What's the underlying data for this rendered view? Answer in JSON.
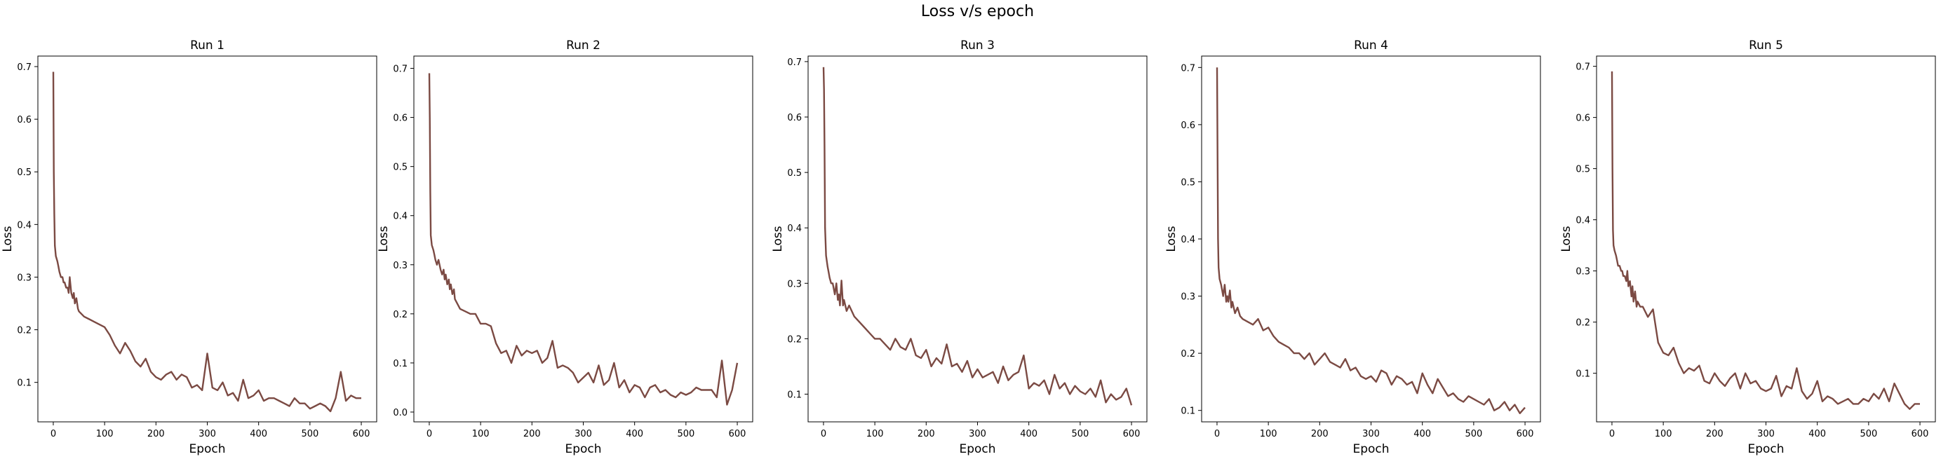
{
  "figure": {
    "title": "Loss v/s epoch",
    "line_color": "#7b4a43"
  },
  "chart_data": [
    {
      "type": "line",
      "title": "Run 1",
      "xlabel": "Epoch",
      "ylabel": "Loss",
      "xlim": [
        -30,
        630
      ],
      "ylim": [
        0.025,
        0.72
      ],
      "xticks": [
        0,
        100,
        200,
        300,
        400,
        500,
        600
      ],
      "yticks": [
        0.1,
        0.2,
        0.3,
        0.4,
        0.5,
        0.6,
        0.7
      ],
      "grid": false,
      "series": [
        {
          "x": [
            0,
            1,
            2,
            3,
            5,
            8,
            10,
            12,
            15,
            18,
            20,
            22,
            25,
            28,
            30,
            32,
            35,
            38,
            40,
            42,
            45,
            48,
            50,
            60,
            70,
            80,
            90,
            100,
            110,
            120,
            130,
            140,
            150,
            160,
            170,
            180,
            190,
            200,
            210,
            220,
            230,
            240,
            250,
            260,
            270,
            280,
            290,
            300,
            310,
            320,
            330,
            340,
            350,
            360,
            370,
            380,
            390,
            400,
            410,
            420,
            430,
            440,
            450,
            460,
            470,
            480,
            490,
            500,
            510,
            520,
            530,
            540,
            550,
            560,
            570,
            580,
            590,
            600
          ],
          "y": [
            0.69,
            0.5,
            0.42,
            0.36,
            0.34,
            0.33,
            0.32,
            0.31,
            0.3,
            0.3,
            0.29,
            0.29,
            0.28,
            0.28,
            0.27,
            0.3,
            0.27,
            0.26,
            0.27,
            0.25,
            0.26,
            0.24,
            0.235,
            0.225,
            0.22,
            0.215,
            0.21,
            0.205,
            0.19,
            0.17,
            0.155,
            0.175,
            0.16,
            0.14,
            0.13,
            0.145,
            0.12,
            0.11,
            0.105,
            0.115,
            0.12,
            0.105,
            0.115,
            0.11,
            0.09,
            0.095,
            0.085,
            0.155,
            0.09,
            0.085,
            0.1,
            0.075,
            0.08,
            0.065,
            0.105,
            0.07,
            0.075,
            0.085,
            0.065,
            0.07,
            0.07,
            0.065,
            0.06,
            0.055,
            0.07,
            0.06,
            0.06,
            0.05,
            0.055,
            0.06,
            0.055,
            0.045,
            0.07,
            0.12,
            0.065,
            0.075,
            0.07,
            0.07
          ]
        }
      ]
    },
    {
      "type": "line",
      "title": "Run 2",
      "xlabel": "Epoch",
      "ylabel": "Loss",
      "xlim": [
        -30,
        630
      ],
      "ylim": [
        -0.02,
        0.725
      ],
      "xticks": [
        0,
        100,
        200,
        300,
        400,
        500,
        600
      ],
      "yticks": [
        0.0,
        0.1,
        0.2,
        0.3,
        0.4,
        0.5,
        0.6,
        0.7
      ],
      "grid": false,
      "series": [
        {
          "x": [
            0,
            1,
            2,
            3,
            5,
            8,
            10,
            12,
            15,
            18,
            20,
            22,
            25,
            28,
            30,
            32,
            35,
            38,
            40,
            42,
            45,
            48,
            50,
            55,
            60,
            70,
            80,
            90,
            100,
            110,
            120,
            130,
            140,
            150,
            160,
            170,
            180,
            190,
            200,
            210,
            220,
            230,
            240,
            250,
            260,
            270,
            280,
            290,
            300,
            310,
            320,
            330,
            340,
            350,
            360,
            370,
            380,
            390,
            400,
            410,
            420,
            430,
            440,
            450,
            460,
            470,
            480,
            490,
            500,
            510,
            520,
            530,
            540,
            550,
            560,
            570,
            580,
            590,
            600
          ],
          "y": [
            0.69,
            0.6,
            0.45,
            0.36,
            0.34,
            0.33,
            0.32,
            0.31,
            0.3,
            0.31,
            0.3,
            0.29,
            0.28,
            0.29,
            0.27,
            0.28,
            0.26,
            0.27,
            0.25,
            0.26,
            0.24,
            0.25,
            0.23,
            0.22,
            0.21,
            0.205,
            0.2,
            0.2,
            0.18,
            0.18,
            0.175,
            0.14,
            0.12,
            0.125,
            0.1,
            0.135,
            0.115,
            0.125,
            0.12,
            0.125,
            0.1,
            0.11,
            0.145,
            0.09,
            0.095,
            0.09,
            0.08,
            0.06,
            0.07,
            0.08,
            0.06,
            0.095,
            0.055,
            0.065,
            0.1,
            0.05,
            0.065,
            0.04,
            0.055,
            0.05,
            0.03,
            0.05,
            0.055,
            0.04,
            0.045,
            0.035,
            0.03,
            0.04,
            0.035,
            0.04,
            0.05,
            0.045,
            0.045,
            0.045,
            0.03,
            0.105,
            0.015,
            0.045,
            0.1
          ]
        }
      ]
    },
    {
      "type": "line",
      "title": "Run 3",
      "xlabel": "Epoch",
      "ylabel": "Loss",
      "xlim": [
        -30,
        630
      ],
      "ylim": [
        0.05,
        0.71
      ],
      "xticks": [
        0,
        100,
        200,
        300,
        400,
        500,
        600
      ],
      "yticks": [
        0.1,
        0.2,
        0.3,
        0.4,
        0.5,
        0.6,
        0.7
      ],
      "grid": false,
      "series": [
        {
          "x": [
            0,
            1,
            2,
            3,
            5,
            8,
            10,
            12,
            15,
            18,
            20,
            22,
            25,
            28,
            30,
            32,
            35,
            38,
            40,
            45,
            50,
            60,
            70,
            80,
            90,
            100,
            110,
            120,
            130,
            140,
            150,
            160,
            170,
            180,
            190,
            200,
            210,
            220,
            230,
            240,
            250,
            260,
            270,
            280,
            290,
            300,
            310,
            320,
            330,
            340,
            350,
            360,
            370,
            380,
            390,
            400,
            410,
            420,
            430,
            440,
            450,
            460,
            470,
            480,
            490,
            500,
            510,
            520,
            530,
            540,
            550,
            560,
            570,
            580,
            590,
            600
          ],
          "y": [
            0.69,
            0.65,
            0.55,
            0.4,
            0.35,
            0.33,
            0.32,
            0.31,
            0.3,
            0.3,
            0.29,
            0.28,
            0.3,
            0.27,
            0.28,
            0.26,
            0.305,
            0.26,
            0.27,
            0.25,
            0.26,
            0.24,
            0.23,
            0.22,
            0.21,
            0.2,
            0.2,
            0.19,
            0.18,
            0.2,
            0.185,
            0.18,
            0.2,
            0.17,
            0.165,
            0.18,
            0.15,
            0.165,
            0.155,
            0.19,
            0.15,
            0.155,
            0.14,
            0.16,
            0.13,
            0.145,
            0.13,
            0.135,
            0.14,
            0.12,
            0.15,
            0.125,
            0.135,
            0.14,
            0.17,
            0.11,
            0.12,
            0.115,
            0.125,
            0.1,
            0.135,
            0.11,
            0.12,
            0.1,
            0.115,
            0.105,
            0.1,
            0.11,
            0.095,
            0.125,
            0.085,
            0.1,
            0.09,
            0.095,
            0.11,
            0.08
          ]
        }
      ]
    },
    {
      "type": "line",
      "title": "Run 4",
      "xlabel": "Epoch",
      "ylabel": "Loss",
      "xlim": [
        -30,
        630
      ],
      "ylim": [
        0.08,
        0.72
      ],
      "xticks": [
        0,
        100,
        200,
        300,
        400,
        500,
        600
      ],
      "yticks": [
        0.1,
        0.2,
        0.3,
        0.4,
        0.5,
        0.6,
        0.7
      ],
      "grid": false,
      "series": [
        {
          "x": [
            0,
            1,
            2,
            3,
            5,
            8,
            10,
            12,
            15,
            18,
            20,
            22,
            25,
            28,
            30,
            35,
            40,
            45,
            50,
            60,
            70,
            80,
            90,
            100,
            110,
            120,
            130,
            140,
            150,
            160,
            170,
            180,
            190,
            200,
            210,
            220,
            230,
            240,
            250,
            260,
            270,
            280,
            290,
            300,
            310,
            320,
            330,
            340,
            350,
            360,
            370,
            380,
            390,
            400,
            410,
            420,
            430,
            440,
            450,
            460,
            470,
            480,
            490,
            500,
            510,
            520,
            530,
            540,
            550,
            560,
            570,
            580,
            590,
            600
          ],
          "y": [
            0.7,
            0.55,
            0.4,
            0.35,
            0.33,
            0.32,
            0.31,
            0.3,
            0.32,
            0.29,
            0.3,
            0.29,
            0.31,
            0.28,
            0.29,
            0.27,
            0.28,
            0.265,
            0.26,
            0.255,
            0.25,
            0.26,
            0.24,
            0.245,
            0.23,
            0.22,
            0.215,
            0.21,
            0.2,
            0.2,
            0.19,
            0.2,
            0.18,
            0.19,
            0.2,
            0.185,
            0.18,
            0.175,
            0.19,
            0.17,
            0.175,
            0.16,
            0.155,
            0.16,
            0.15,
            0.17,
            0.165,
            0.145,
            0.16,
            0.155,
            0.145,
            0.15,
            0.13,
            0.165,
            0.145,
            0.13,
            0.155,
            0.14,
            0.125,
            0.13,
            0.12,
            0.115,
            0.125,
            0.12,
            0.115,
            0.11,
            0.12,
            0.1,
            0.105,
            0.115,
            0.1,
            0.11,
            0.095,
            0.105
          ]
        }
      ]
    },
    {
      "type": "line",
      "title": "Run 5",
      "xlabel": "Epoch",
      "ylabel": "Loss",
      "xlim": [
        -30,
        630
      ],
      "ylim": [
        0.005,
        0.72
      ],
      "xticks": [
        0,
        100,
        200,
        300,
        400,
        500,
        600
      ],
      "yticks": [
        0.1,
        0.2,
        0.3,
        0.4,
        0.5,
        0.6,
        0.7
      ],
      "grid": false,
      "series": [
        {
          "x": [
            0,
            1,
            2,
            3,
            5,
            8,
            10,
            12,
            15,
            18,
            20,
            22,
            25,
            28,
            30,
            32,
            35,
            38,
            40,
            42,
            45,
            48,
            50,
            55,
            60,
            70,
            80,
            90,
            100,
            110,
            120,
            130,
            140,
            150,
            160,
            170,
            180,
            190,
            200,
            210,
            220,
            230,
            240,
            250,
            260,
            270,
            280,
            290,
            300,
            310,
            320,
            330,
            340,
            350,
            360,
            370,
            380,
            390,
            400,
            410,
            420,
            430,
            440,
            450,
            460,
            470,
            480,
            490,
            500,
            510,
            520,
            530,
            540,
            550,
            560,
            570,
            580,
            590,
            600
          ],
          "y": [
            0.69,
            0.5,
            0.38,
            0.35,
            0.34,
            0.33,
            0.32,
            0.31,
            0.31,
            0.3,
            0.3,
            0.29,
            0.29,
            0.28,
            0.3,
            0.27,
            0.28,
            0.25,
            0.27,
            0.24,
            0.26,
            0.23,
            0.24,
            0.23,
            0.23,
            0.21,
            0.225,
            0.16,
            0.14,
            0.135,
            0.15,
            0.12,
            0.1,
            0.11,
            0.105,
            0.115,
            0.085,
            0.08,
            0.1,
            0.085,
            0.075,
            0.09,
            0.1,
            0.07,
            0.1,
            0.08,
            0.085,
            0.07,
            0.065,
            0.07,
            0.095,
            0.055,
            0.075,
            0.07,
            0.11,
            0.065,
            0.05,
            0.06,
            0.085,
            0.045,
            0.055,
            0.05,
            0.04,
            0.045,
            0.05,
            0.04,
            0.04,
            0.05,
            0.045,
            0.06,
            0.05,
            0.07,
            0.045,
            0.08,
            0.06,
            0.04,
            0.03,
            0.04,
            0.04
          ]
        }
      ]
    }
  ]
}
